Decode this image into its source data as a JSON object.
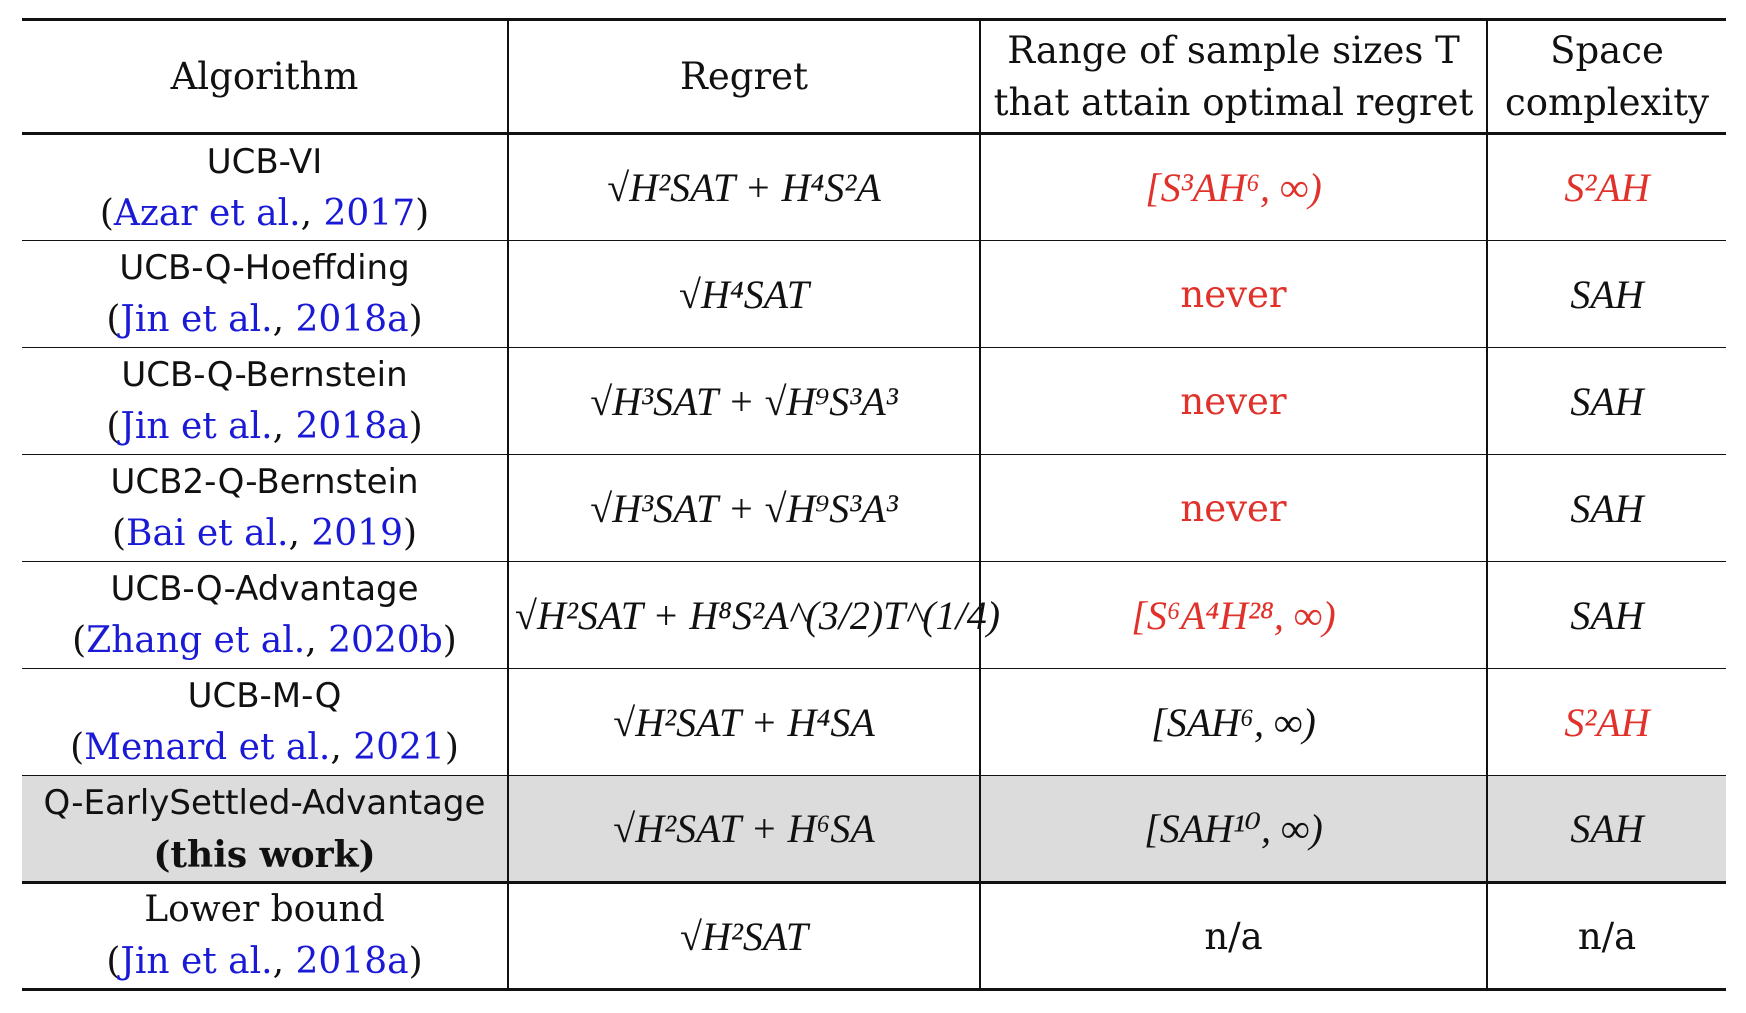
{
  "header": {
    "algorithm": "Algorithm",
    "regret": "Regret",
    "range_line1": "Range of sample sizes T",
    "range_line2": "that attain optimal regret",
    "space_line1": "Space",
    "space_line2": "complexity"
  },
  "rows": [
    {
      "algorithm": "UCB-VI",
      "cite_open": "(",
      "cite_name": "Azar et al.",
      "cite_sep": ", ",
      "cite_year": "2017",
      "cite_close": ")",
      "regret": "√H²SAT + H⁴S²A",
      "range": "[S³AH⁶, ∞)",
      "space": "S²AH"
    },
    {
      "algorithm": "UCB-Q-Hoeffding",
      "cite_open": "(",
      "cite_name": "Jin et al.",
      "cite_sep": ", ",
      "cite_year": "2018a",
      "cite_close": ")",
      "regret": "√H⁴SAT",
      "range": "never",
      "space": "SAH"
    },
    {
      "algorithm": "UCB-Q-Bernstein",
      "cite_open": "(",
      "cite_name": "Jin et al.",
      "cite_sep": ", ",
      "cite_year": "2018a",
      "cite_close": ")",
      "regret": "√H³SAT + √H⁹S³A³",
      "range": "never",
      "space": "SAH"
    },
    {
      "algorithm": "UCB2-Q-Bernstein",
      "cite_open": "(",
      "cite_name": "Bai et al.",
      "cite_sep": ", ",
      "cite_year": "2019",
      "cite_close": ")",
      "regret": "√H³SAT + √H⁹S³A³",
      "range": "never",
      "space": "SAH"
    },
    {
      "algorithm": "UCB-Q-Advantage",
      "cite_open": "(",
      "cite_name": "Zhang et al.",
      "cite_sep": ", ",
      "cite_year": "2020b",
      "cite_close": ")",
      "regret": "√H²SAT + H⁸S²A^(3/2)T^(1/4)",
      "range": "[S⁶A⁴H²⁸, ∞)",
      "space": "SAH"
    },
    {
      "algorithm": "UCB-M-Q",
      "cite_open": "(",
      "cite_name": "Menard et al.",
      "cite_sep": ", ",
      "cite_year": "2021",
      "cite_close": ")",
      "regret": "√H²SAT + H⁴SA",
      "range": "[SAH⁶, ∞)",
      "space": "S²AH"
    },
    {
      "algorithm": "Q-EarlySettled-Advantage",
      "note": "(this work)",
      "regret": "√H²SAT + H⁶SA",
      "range": "[SAH¹⁰, ∞)",
      "space": "SAH"
    },
    {
      "algorithm": "Lower bound",
      "cite_open": "(",
      "cite_name": "Jin et al.",
      "cite_sep": ", ",
      "cite_year": "2018a",
      "cite_close": ")",
      "regret": "√H²SAT",
      "range": "n/a",
      "space": "n/a"
    }
  ],
  "colors": {
    "highlight_red": "#e0312a",
    "citation_blue": "#1a1ad6",
    "ours_row_bg": "#dcdcdc"
  }
}
